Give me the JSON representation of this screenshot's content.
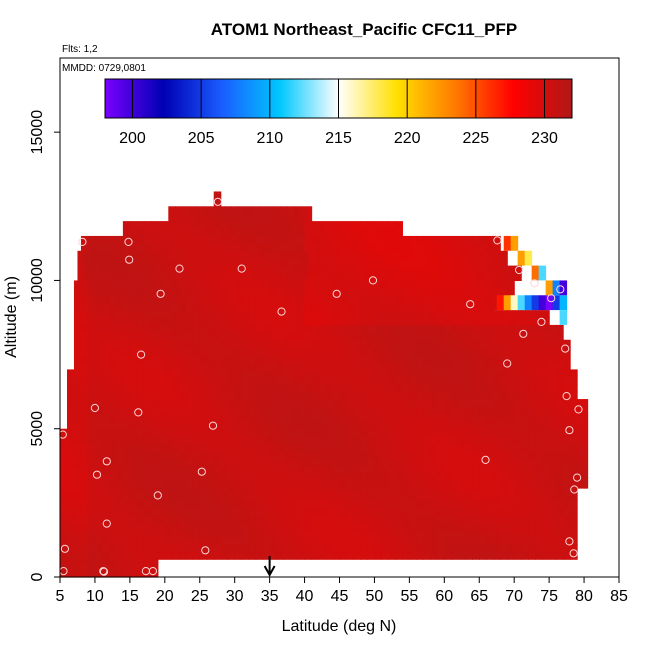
{
  "chart_data": {
    "type": "heatmap",
    "title": "ATOM1 Northeast_Pacific CFC11_PFP",
    "subtitle_flights": "Flts: 1,2",
    "subtitle_dates": "MMDD: 0729,0801",
    "xlabel": "Latitude (deg N)",
    "ylabel": "Altitude (m)",
    "xlim": [
      5,
      85
    ],
    "ylim": [
      0,
      17500
    ],
    "x_ticks": [
      5,
      10,
      15,
      20,
      25,
      30,
      35,
      40,
      45,
      50,
      55,
      60,
      65,
      70,
      75,
      80,
      85
    ],
    "x_tick_labels": [
      "5",
      "10",
      "15",
      "20",
      "25",
      "30",
      "35",
      "40",
      "45",
      "50",
      "55",
      "60",
      "65",
      "70",
      "75",
      "80",
      "85"
    ],
    "y_ticks": [
      0,
      5000,
      10000,
      15000
    ],
    "y_tick_labels": [
      "0",
      "5000",
      "10000",
      "15000"
    ],
    "colorbar": {
      "range": [
        198,
        232
      ],
      "ticks": [
        200,
        205,
        210,
        215,
        220,
        225,
        230
      ],
      "tick_labels": [
        "200",
        "205",
        "210",
        "215",
        "220",
        "225",
        "230"
      ],
      "colors": [
        "#7a00ff",
        "#0000b4",
        "#1a5cff",
        "#00c8ff",
        "#ffffff",
        "#ffe000",
        "#ff7a00",
        "#ff0000",
        "#b01818"
      ]
    },
    "marker_latitude": 35,
    "field_extent": [
      {
        "y0": 0,
        "y1": 600,
        "x0": 5,
        "x1": 19
      },
      {
        "y0": 600,
        "y1": 3000,
        "x0": 5,
        "x1": 79
      },
      {
        "y0": 3000,
        "y1": 5000,
        "x0": 5,
        "x1": 80.5
      },
      {
        "y0": 5000,
        "y1": 6000,
        "x0": 6,
        "x1": 80.5
      },
      {
        "y0": 6000,
        "y1": 7000,
        "x0": 6,
        "x1": 79
      },
      {
        "y0": 7000,
        "y1": 8000,
        "x0": 7,
        "x1": 78
      },
      {
        "y0": 8000,
        "y1": 8500,
        "x0": 7,
        "x1": 77
      },
      {
        "y0": 8500,
        "y1": 9000,
        "x0": 7,
        "x1": 75
      },
      {
        "y0": 9000,
        "y1": 9500,
        "x0": 7,
        "x1": 67
      },
      {
        "y0": 9500,
        "y1": 10000,
        "x0": 7,
        "x1": 70
      },
      {
        "y0": 10000,
        "y1": 10500,
        "x0": 7.5,
        "x1": 71
      },
      {
        "y0": 10500,
        "y1": 11000,
        "x0": 7.5,
        "x1": 69
      },
      {
        "y0": 11000,
        "y1": 11500,
        "x0": 8,
        "x1": 68
      },
      {
        "y0": 11500,
        "y1": 12000,
        "x0": 14,
        "x1": 54
      },
      {
        "y0": 12000,
        "y1": 12500,
        "x0": 20.5,
        "x1": 41
      },
      {
        "y0": 12500,
        "y1": 13000,
        "x0": 27,
        "x1": 28
      }
    ],
    "anomaly_cells": [
      {
        "x": 67,
        "y": 9250,
        "value": 230
      },
      {
        "x": 68,
        "y": 9250,
        "value": 227
      },
      {
        "x": 69,
        "y": 9250,
        "value": 222
      },
      {
        "x": 70,
        "y": 9250,
        "value": 216
      },
      {
        "x": 71,
        "y": 9250,
        "value": 212
      },
      {
        "x": 72,
        "y": 9250,
        "value": 208
      },
      {
        "x": 73,
        "y": 9250,
        "value": 205
      },
      {
        "x": 74,
        "y": 9250,
        "value": 200
      },
      {
        "x": 75,
        "y": 9250,
        "value": 198
      },
      {
        "x": 76,
        "y": 9250,
        "value": 205
      },
      {
        "x": 77,
        "y": 9250,
        "value": 210
      },
      {
        "x": 75,
        "y": 9750,
        "value": 222
      },
      {
        "x": 76,
        "y": 9750,
        "value": 208
      },
      {
        "x": 77,
        "y": 9750,
        "value": 200
      },
      {
        "x": 73,
        "y": 10250,
        "value": 224
      },
      {
        "x": 74,
        "y": 10250,
        "value": 212
      },
      {
        "x": 71,
        "y": 10750,
        "value": 222
      },
      {
        "x": 72,
        "y": 10750,
        "value": 218
      },
      {
        "x": 69,
        "y": 11250,
        "value": 226
      },
      {
        "x": 70,
        "y": 11250,
        "value": 222
      },
      {
        "x": 77,
        "y": 8750,
        "value": 212
      }
    ],
    "samples": [
      {
        "lat": 5.5,
        "alt": 200
      },
      {
        "lat": 5.7,
        "alt": 950
      },
      {
        "lat": 5.4,
        "alt": 4800
      },
      {
        "lat": 10.0,
        "alt": 5700
      },
      {
        "lat": 10.3,
        "alt": 3450
      },
      {
        "lat": 11.7,
        "alt": 3900
      },
      {
        "lat": 11.7,
        "alt": 1800
      },
      {
        "lat": 11.2,
        "alt": 200
      },
      {
        "lat": 11.3,
        "alt": 180
      },
      {
        "lat": 8.2,
        "alt": 11300
      },
      {
        "lat": 14.8,
        "alt": 11300
      },
      {
        "lat": 14.9,
        "alt": 10700
      },
      {
        "lat": 16.2,
        "alt": 5550
      },
      {
        "lat": 16.6,
        "alt": 7500
      },
      {
        "lat": 17.3,
        "alt": 200
      },
      {
        "lat": 18.3,
        "alt": 200
      },
      {
        "lat": 19.0,
        "alt": 2750
      },
      {
        "lat": 19.4,
        "alt": 9550
      },
      {
        "lat": 22.1,
        "alt": 10400
      },
      {
        "lat": 25.3,
        "alt": 3550
      },
      {
        "lat": 25.8,
        "alt": 900
      },
      {
        "lat": 26.9,
        "alt": 5100
      },
      {
        "lat": 27.6,
        "alt": 12650
      },
      {
        "lat": 31.0,
        "alt": 10400
      },
      {
        "lat": 36.7,
        "alt": 8950
      },
      {
        "lat": 44.6,
        "alt": 9550
      },
      {
        "lat": 49.8,
        "alt": 10000
      },
      {
        "lat": 63.7,
        "alt": 9200
      },
      {
        "lat": 65.9,
        "alt": 3950
      },
      {
        "lat": 67.6,
        "alt": 11350
      },
      {
        "lat": 69.0,
        "alt": 7200
      },
      {
        "lat": 70.7,
        "alt": 10350
      },
      {
        "lat": 71.3,
        "alt": 8200
      },
      {
        "lat": 72.9,
        "alt": 9900
      },
      {
        "lat": 73.9,
        "alt": 8600
      },
      {
        "lat": 75.3,
        "alt": 9400
      },
      {
        "lat": 76.6,
        "alt": 9700
      },
      {
        "lat": 77.3,
        "alt": 7700
      },
      {
        "lat": 77.5,
        "alt": 6100
      },
      {
        "lat": 77.9,
        "alt": 4950
      },
      {
        "lat": 77.9,
        "alt": 1200
      },
      {
        "lat": 78.5,
        "alt": 800
      },
      {
        "lat": 78.6,
        "alt": 2950
      },
      {
        "lat": 79.0,
        "alt": 3350
      },
      {
        "lat": 79.2,
        "alt": 5650
      }
    ]
  }
}
